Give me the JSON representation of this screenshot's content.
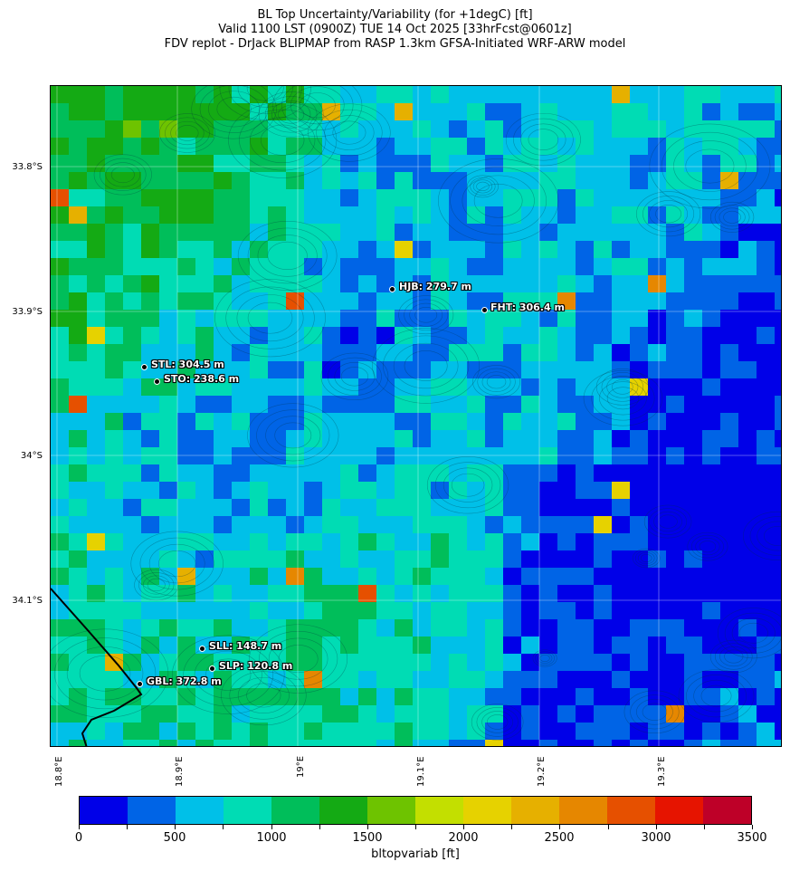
{
  "header": {
    "title_line1": "BL Top Uncertainty/Variability (for +1degC) [ft]",
    "title_line2": "Valid 1100 LST (0900Z) TUE 14 Oct 2025 [33hrFcst@0601z]",
    "title_line3": "FDV replot - DrJack BLIPMAP from RASP 1.3km GFSA-Initiated WRF-ARW model"
  },
  "map": {
    "lat_labels": [
      "33.8°S",
      "33.9°S",
      "34°S",
      "34.1°S"
    ],
    "lon_labels": [
      "18.8°E",
      "18.9°E",
      "19°E",
      "19.1°E",
      "19.2°E",
      "19.3°E"
    ],
    "stations": [
      {
        "code": "HJB",
        "label": "HJB: 279.7 m"
      },
      {
        "code": "FHT",
        "label": "FHT: 306.4 m"
      },
      {
        "code": "STL",
        "label": "STL: 304.5 m"
      },
      {
        "code": "STO",
        "label": "STO: 238.6 m"
      },
      {
        "code": "SLL",
        "label": "SLL: 148.7 m"
      },
      {
        "code": "SLP",
        "label": "SLP: 120.8 m"
      },
      {
        "code": "GBL",
        "label": "GBL: 372.8 m"
      }
    ]
  },
  "colorbar": {
    "label": "bltopvariab [ft]",
    "tick_labels": [
      "0",
      "500",
      "1000",
      "1500",
      "2000",
      "2500",
      "3000",
      "3500"
    ],
    "colors": [
      "#0000e8",
      "#0064e6",
      "#00c0e8",
      "#00dcb4",
      "#00be5a",
      "#14aa14",
      "#6ec300",
      "#c3df00",
      "#e6d200",
      "#e6b000",
      "#e68700",
      "#e65000",
      "#e61400",
      "#be0028"
    ]
  }
}
